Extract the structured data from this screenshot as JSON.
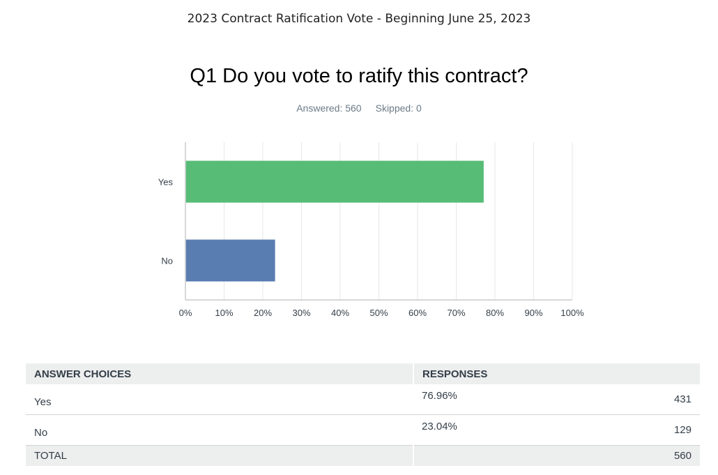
{
  "survey_title": "2023 Contract Ratification Vote - Beginning June 25, 2023",
  "question_title": "Q1 Do you vote to ratify this contract?",
  "stats": {
    "answered_label": "Answered: 560",
    "skipped_label": "Skipped: 0"
  },
  "chart_data": {
    "type": "bar",
    "orientation": "horizontal",
    "categories": [
      "Yes",
      "No"
    ],
    "values": [
      76.96,
      23.04
    ],
    "colors": [
      "#57bc76",
      "#5a7db1"
    ],
    "xlim": [
      0,
      100
    ],
    "x_ticks": [
      "0%",
      "10%",
      "20%",
      "30%",
      "40%",
      "50%",
      "60%",
      "70%",
      "80%",
      "90%",
      "100%"
    ],
    "grid": "vertical",
    "title": "",
    "xlabel": "",
    "ylabel": ""
  },
  "table": {
    "headers": {
      "choices": "ANSWER CHOICES",
      "responses": "RESPONSES"
    },
    "rows": [
      {
        "choice": "Yes",
        "percent": "76.96%",
        "count": "431"
      },
      {
        "choice": "No",
        "percent": "23.04%",
        "count": "129"
      }
    ],
    "total": {
      "label": "TOTAL",
      "count": "560"
    }
  }
}
